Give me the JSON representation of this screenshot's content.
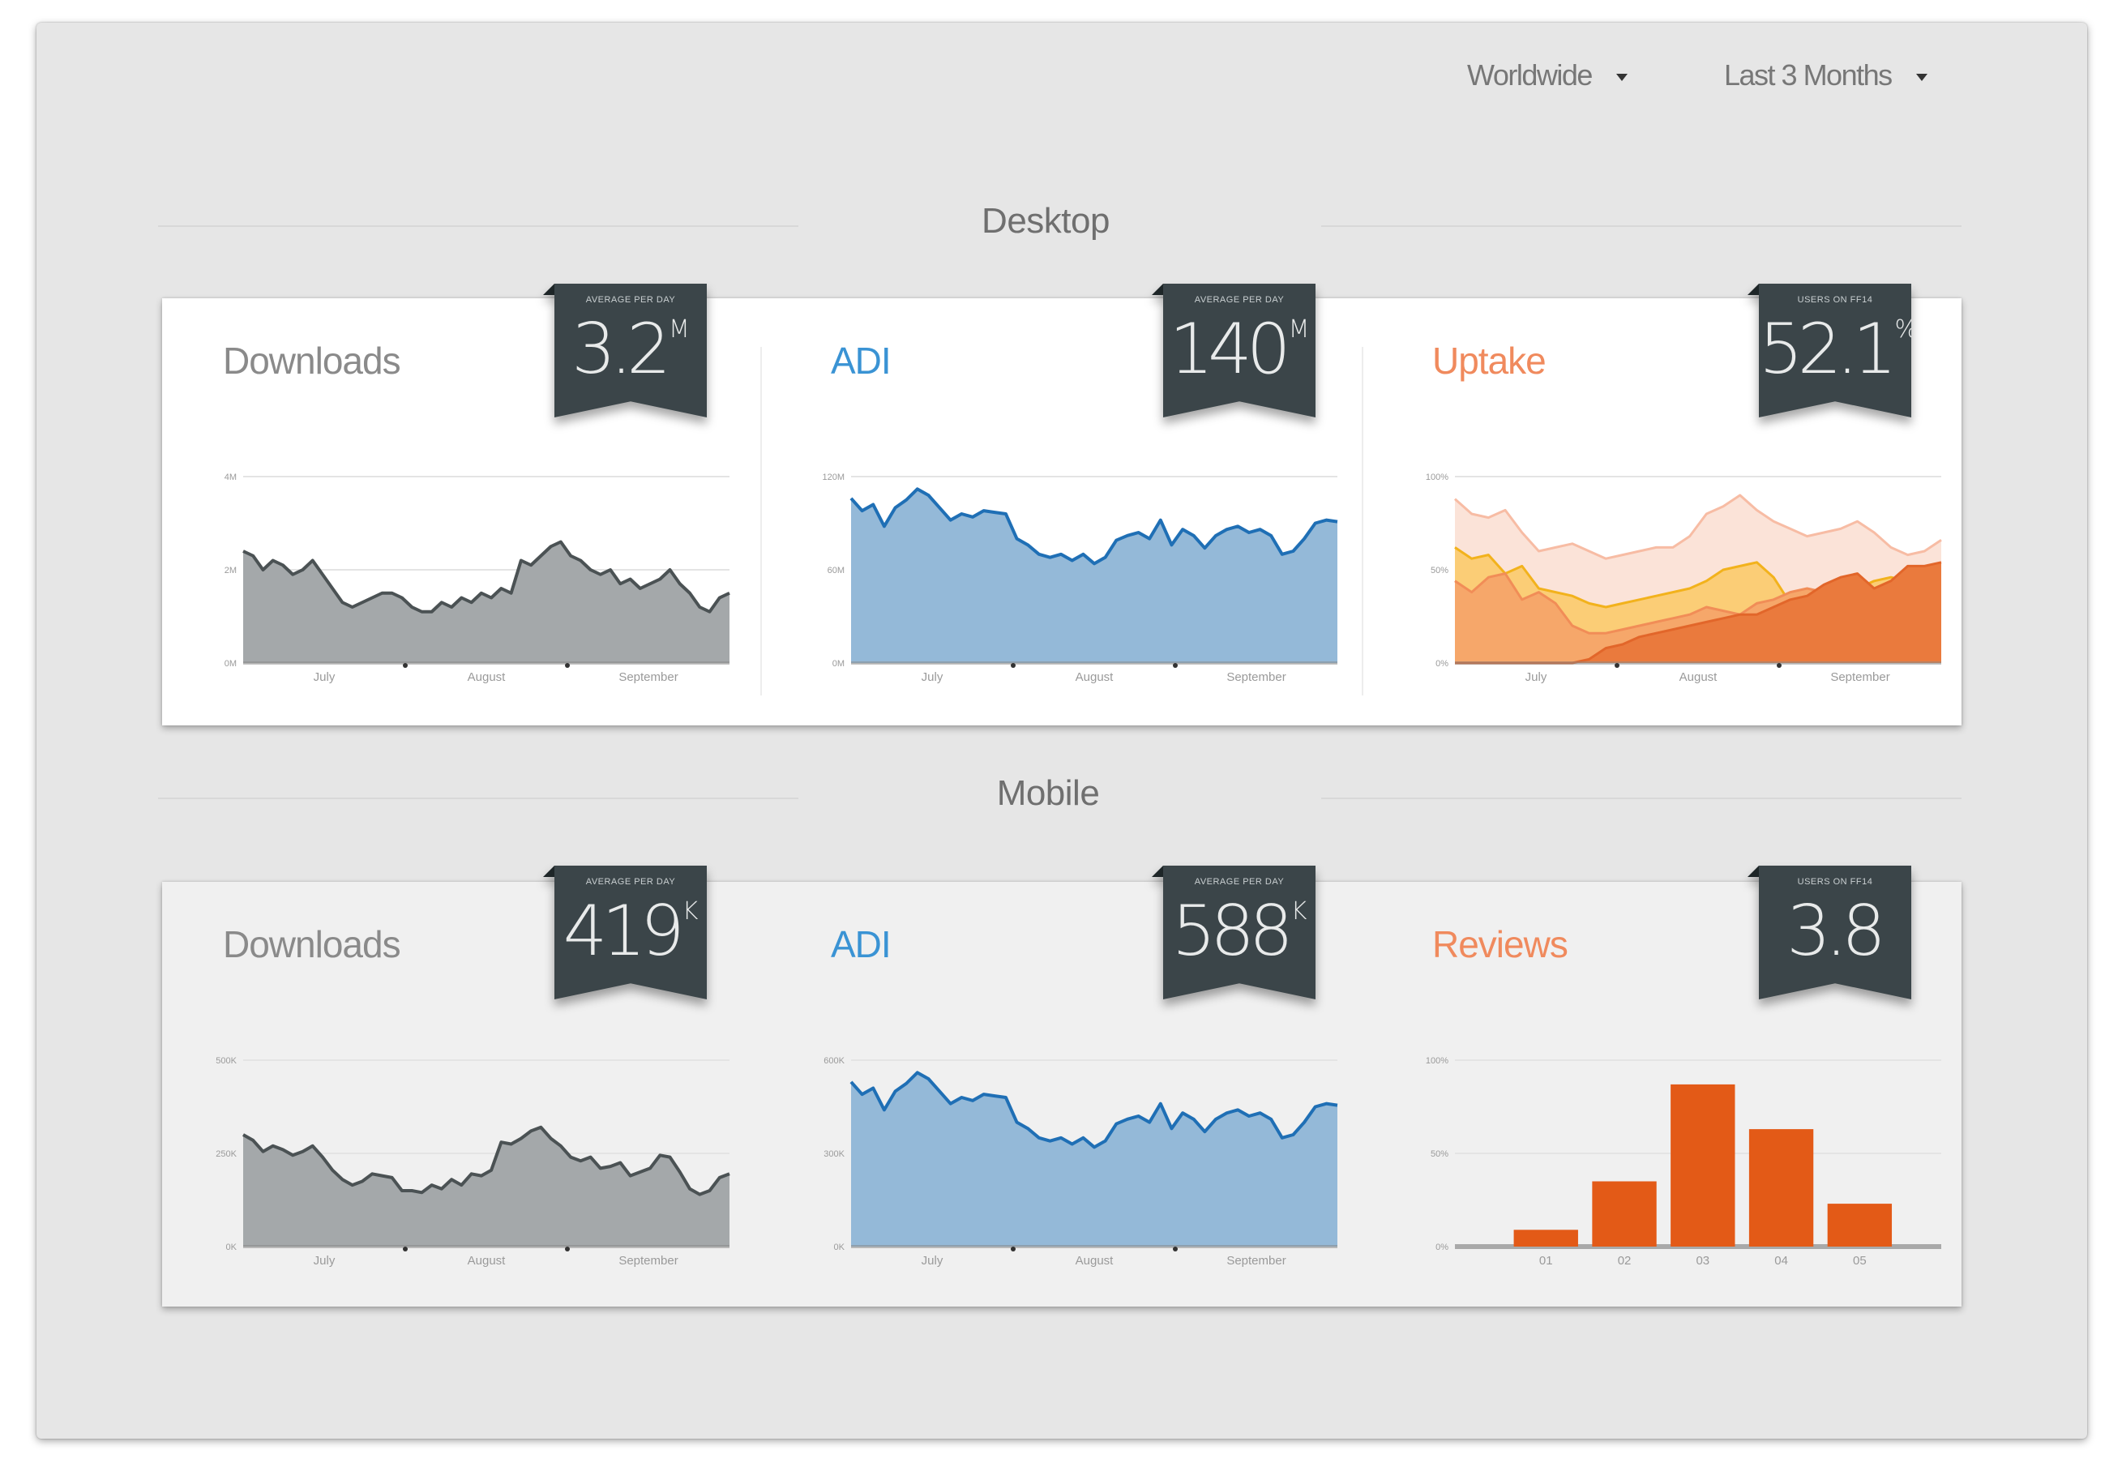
{
  "filters": {
    "region": {
      "label": "Worldwide",
      "icon": "caret-down-icon"
    },
    "period": {
      "label": "Last 3 Months",
      "icon": "caret-down-icon"
    }
  },
  "colors": {
    "gray_fill": "#a4a8aa",
    "gray_line": "#4b5254",
    "blue_fill": "#94b9d8",
    "blue_line": "#1f6fb5",
    "orange_accent": "#f08a5d",
    "blue_accent": "#3a93d4",
    "bar_fill": "#e35a17",
    "badge_bg": "#3b4549"
  },
  "sections": {
    "desktop": {
      "title": "Desktop",
      "downloads": {
        "title": "Downloads",
        "badge_label": "Average per day",
        "badge_value": "3.2",
        "badge_unit": "M"
      },
      "adi": {
        "title": "ADI",
        "badge_label": "Average per day",
        "badge_value": "140",
        "badge_unit": "M"
      },
      "uptake": {
        "title": "Uptake",
        "badge_label": "Users on FF14",
        "badge_value": "52.1",
        "badge_unit": "%"
      }
    },
    "mobile": {
      "title": "Mobile",
      "downloads": {
        "title": "Downloads",
        "badge_label": "Average per day",
        "badge_value": "419",
        "badge_unit": "K"
      },
      "adi": {
        "title": "ADI",
        "badge_label": "Average per day",
        "badge_value": "588",
        "badge_unit": "K"
      },
      "reviews": {
        "title": "Reviews",
        "badge_label": "Users on FF14",
        "badge_value": "3.8",
        "badge_unit": ""
      }
    }
  },
  "chart_data": [
    {
      "id": "desktop-downloads",
      "type": "area",
      "title": "Downloads",
      "xlabel": "",
      "ylabel": "",
      "ylim": [
        0,
        4
      ],
      "grid": true,
      "yticks": [
        "0M",
        "2M",
        "4M"
      ],
      "categories": [
        "July",
        "August",
        "September"
      ],
      "values": [
        2.4,
        2.3,
        2.0,
        2.2,
        2.1,
        1.9,
        2.0,
        2.2,
        1.9,
        1.6,
        1.3,
        1.2,
        1.3,
        1.4,
        1.5,
        1.5,
        1.4,
        1.2,
        1.1,
        1.1,
        1.3,
        1.2,
        1.4,
        1.3,
        1.5,
        1.4,
        1.6,
        1.5,
        2.2,
        2.1,
        2.3,
        2.5,
        2.6,
        2.3,
        2.2,
        2.0,
        1.9,
        2.0,
        1.7,
        1.8,
        1.6,
        1.7,
        1.8,
        2.0,
        1.7,
        1.5,
        1.2,
        1.1,
        1.4,
        1.5
      ]
    },
    {
      "id": "desktop-adi",
      "type": "area",
      "title": "ADI",
      "ylim": [
        0,
        120
      ],
      "grid": true,
      "yticks": [
        "0M",
        "60M",
        "120M"
      ],
      "categories": [
        "July",
        "August",
        "September"
      ],
      "values": [
        106,
        98,
        102,
        88,
        100,
        105,
        112,
        108,
        100,
        92,
        96,
        94,
        98,
        97,
        96,
        80,
        76,
        70,
        68,
        70,
        66,
        70,
        64,
        68,
        79,
        82,
        84,
        80,
        92,
        76,
        86,
        82,
        74,
        82,
        86,
        88,
        84,
        86,
        82,
        70,
        72,
        80,
        90,
        92,
        91
      ]
    },
    {
      "id": "desktop-uptake",
      "type": "area",
      "title": "Uptake",
      "ylim": [
        0,
        100
      ],
      "grid": true,
      "yticks": [
        "0%",
        "50%",
        "100%"
      ],
      "categories": [
        "July",
        "August",
        "September"
      ],
      "series": [
        {
          "name": "light",
          "values": [
            88,
            80,
            78,
            82,
            70,
            60,
            62,
            64,
            60,
            56,
            58,
            60,
            62,
            62,
            68,
            80,
            84,
            90,
            82,
            76,
            72,
            68,
            70,
            72,
            76,
            70,
            62,
            58,
            60,
            66
          ]
        },
        {
          "name": "yellow",
          "values": [
            62,
            56,
            58,
            48,
            52,
            40,
            38,
            36,
            32,
            30,
            32,
            34,
            36,
            38,
            40,
            44,
            50,
            52,
            54,
            46,
            32,
            30,
            34,
            36,
            40,
            44,
            46,
            44,
            42,
            42
          ]
        },
        {
          "name": "mid",
          "values": [
            44,
            38,
            46,
            48,
            34,
            38,
            32,
            20,
            16,
            16,
            18,
            20,
            22,
            24,
            26,
            30,
            28,
            26,
            32,
            34,
            38,
            40,
            38,
            36,
            34,
            28,
            32,
            38,
            40,
            40
          ]
        },
        {
          "name": "dark",
          "values": [
            0,
            0,
            0,
            0,
            0,
            0,
            0,
            0,
            2,
            8,
            10,
            14,
            16,
            18,
            20,
            22,
            24,
            26,
            26,
            30,
            34,
            36,
            42,
            46,
            48,
            40,
            44,
            52,
            52,
            54
          ]
        }
      ]
    },
    {
      "id": "mobile-downloads",
      "type": "area",
      "title": "Downloads",
      "ylim": [
        0,
        500
      ],
      "grid": true,
      "yticks": [
        "0K",
        "250K",
        "500K"
      ],
      "categories": [
        "July",
        "August",
        "September"
      ],
      "values": [
        300,
        285,
        255,
        270,
        260,
        245,
        255,
        270,
        240,
        205,
        180,
        165,
        175,
        195,
        190,
        185,
        150,
        150,
        145,
        165,
        155,
        180,
        165,
        195,
        190,
        205,
        280,
        275,
        290,
        310,
        320,
        290,
        270,
        240,
        230,
        240,
        210,
        215,
        225,
        190,
        200,
        210,
        245,
        240,
        200,
        155,
        140,
        150,
        185,
        195
      ]
    },
    {
      "id": "mobile-adi",
      "type": "area",
      "title": "ADI",
      "ylim": [
        0,
        600
      ],
      "grid": true,
      "yticks": [
        "0K",
        "300K",
        "600K"
      ],
      "categories": [
        "July",
        "August",
        "September"
      ],
      "values": [
        530,
        490,
        510,
        440,
        500,
        525,
        560,
        540,
        500,
        460,
        480,
        470,
        490,
        485,
        480,
        400,
        380,
        350,
        340,
        350,
        330,
        350,
        320,
        340,
        395,
        410,
        420,
        400,
        460,
        380,
        430,
        410,
        370,
        410,
        430,
        440,
        420,
        430,
        410,
        350,
        360,
        400,
        450,
        460,
        455
      ]
    },
    {
      "id": "mobile-reviews",
      "type": "bar",
      "title": "Reviews",
      "ylim": [
        0,
        100
      ],
      "grid": true,
      "yticks": [
        "0%",
        "50%",
        "100%"
      ],
      "categories": [
        "01",
        "02",
        "03",
        "04",
        "05"
      ],
      "values": [
        9,
        35,
        87,
        63,
        23
      ]
    }
  ]
}
